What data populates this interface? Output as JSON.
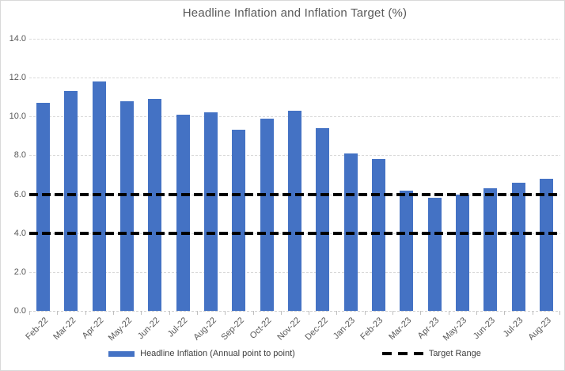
{
  "chart_data": {
    "type": "bar",
    "title": "Headline Inflation and Inflation Target (%)",
    "categories": [
      "Feb-22",
      "Mar-22",
      "Apr-22",
      "May-22",
      "Jun-22",
      "Jul-22",
      "Aug-22",
      "Sep-22",
      "Oct-22",
      "Nov-22",
      "Dec-22",
      "Jan-23",
      "Feb-23",
      "Mar-23",
      "Apr-23",
      "May-23",
      "Jun-23",
      "Jul-23",
      "Aug-23"
    ],
    "series": [
      {
        "name": "Headline Inflation (Annual point to point)",
        "type": "bar",
        "color": "#4472C4",
        "values": [
          10.7,
          11.3,
          11.8,
          10.8,
          10.9,
          10.1,
          10.2,
          9.3,
          9.9,
          10.3,
          9.4,
          8.1,
          7.8,
          6.2,
          5.8,
          6.0,
          6.3,
          6.6,
          6.8
        ]
      },
      {
        "name": "Target Range",
        "type": "dashed-horizontal-lines",
        "color": "#000000",
        "values": [
          4.0,
          6.0
        ]
      }
    ],
    "ylim": [
      0,
      14
    ],
    "yticks": [
      0,
      2,
      4,
      6,
      8,
      10,
      12,
      14
    ],
    "ytick_labels": [
      "0.0",
      "2.0",
      "4.0",
      "6.0",
      "8.0",
      "10.0",
      "12.0",
      "14.0"
    ],
    "xlabel": "",
    "ylabel": "",
    "grid": true,
    "legend_position": "bottom"
  },
  "colors": {
    "bar": "#4472C4",
    "target_line": "#000000",
    "gridline": "#D9D9D9",
    "axis_text": "#595959",
    "title_text": "#595959",
    "legend_text": "#404040",
    "border": "#D9D9D9",
    "background": "#FFFFFF"
  }
}
